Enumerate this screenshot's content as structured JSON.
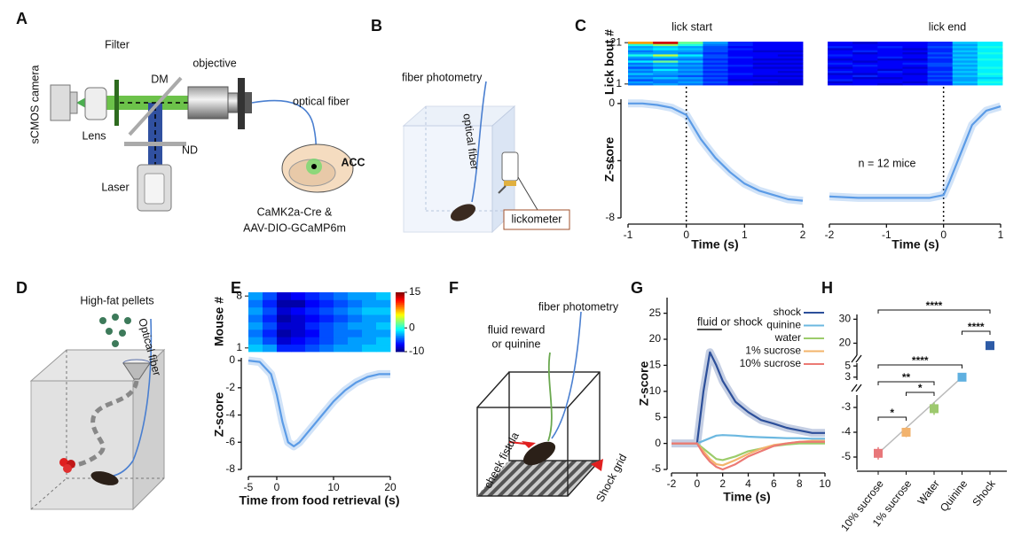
{
  "panel_labels": [
    "A",
    "B",
    "C",
    "D",
    "E",
    "F",
    "G",
    "H"
  ],
  "diagrams": {
    "A": {
      "labels": [
        "sCMOS camera",
        "Lens",
        "Filter",
        "DM",
        "objective",
        "optical fiber",
        "ND",
        "Laser",
        "ACC",
        "CaMK2a-Cre &",
        "AAV-DIO-GCaMP6m"
      ]
    },
    "B": {
      "labels": [
        "fiber photometry",
        "optical fiber",
        "lickometer"
      ]
    },
    "D": {
      "labels": [
        "High-fat pellets",
        "Optical fiber"
      ]
    },
    "F": {
      "labels": [
        "fiber photometry",
        "fluid reward",
        "or quinine",
        "cheek fistula",
        "Shock grid"
      ]
    }
  },
  "chart_data": [
    {
      "type": "line",
      "annotation": "lick start",
      "ylabel": "Z-score",
      "xlabel": "Time (s)",
      "color": "#5b9be6",
      "x": [
        -1,
        -0.75,
        -0.5,
        -0.25,
        0,
        0.25,
        0.5,
        0.75,
        1,
        1.25,
        1.5,
        1.75,
        2
      ],
      "values": [
        0,
        0,
        -0.1,
        -0.3,
        -0.8,
        -2.5,
        -3.8,
        -4.8,
        -5.6,
        -6.1,
        -6.4,
        -6.7,
        -6.8
      ],
      "xlim": [
        -1,
        2
      ],
      "xticks": [
        -1,
        0,
        1,
        2
      ],
      "ylim": [
        -8,
        0.3
      ],
      "yticks": [
        0,
        -4,
        -8
      ],
      "vline": 0,
      "heatmap": {
        "ylabel": "Lick bout #",
        "yticks": [
          21,
          1
        ],
        "clim": [
          -10,
          15
        ],
        "rows": [
          [
            -4,
            -3,
            -4,
            -6,
            -7,
            -8,
            -8
          ],
          [
            -3,
            -4,
            -3,
            -5,
            -7,
            -7,
            -8
          ],
          [
            -5,
            -4,
            -4,
            -6,
            -8,
            -8,
            -8
          ],
          [
            -3,
            -2,
            -3,
            -5,
            -7,
            -7,
            -7
          ],
          [
            -4,
            -4,
            -5,
            -6,
            -7,
            -8,
            -8
          ],
          [
            -2,
            -3,
            -3,
            -5,
            -6,
            -7,
            -7
          ],
          [
            -4,
            -3,
            -4,
            -6,
            -7,
            -7,
            -8
          ],
          [
            -3,
            -1,
            -3,
            -5,
            -7,
            -7,
            -7
          ],
          [
            -5,
            -4,
            -4,
            -6,
            -7,
            -8,
            -8
          ],
          [
            -3,
            -2,
            -3,
            -5,
            -6,
            -7,
            -7
          ],
          [
            -4,
            -3,
            -4,
            -6,
            -7,
            -8,
            -8
          ],
          [
            -1,
            2,
            -2,
            -5,
            -7,
            -7,
            -7
          ],
          [
            -4,
            -4,
            -4,
            -6,
            -7,
            -8,
            -8
          ],
          [
            -3,
            -2,
            -3,
            -5,
            -6,
            -7,
            -7
          ],
          [
            0,
            4,
            -1,
            -5,
            -7,
            -7,
            -8
          ],
          [
            -3,
            -3,
            -4,
            -6,
            -7,
            -7,
            -7
          ],
          [
            -4,
            -3,
            -3,
            -5,
            -7,
            -8,
            -8
          ],
          [
            -2,
            -1,
            -2,
            -5,
            -6,
            -7,
            -7
          ],
          [
            -3,
            -2,
            -3,
            -5,
            -7,
            -7,
            -7
          ],
          [
            0,
            3,
            0,
            -4,
            -6,
            -7,
            -7
          ],
          [
            8,
            13,
            2,
            -3,
            -6,
            -7,
            -7
          ]
        ]
      }
    },
    {
      "type": "line",
      "annotation": "lick end",
      "note": "n = 12 mice",
      "xlabel": "Time (s)",
      "color": "#5b9be6",
      "x": [
        -2,
        -1.5,
        -1,
        -0.5,
        -0.25,
        0,
        0.1,
        0.25,
        0.4,
        0.5,
        0.75,
        1
      ],
      "values": [
        -6.5,
        -6.6,
        -6.6,
        -6.6,
        -6.6,
        -6.4,
        -5.5,
        -4,
        -2.5,
        -1.5,
        -0.5,
        -0.2
      ],
      "xlim": [
        -2,
        1
      ],
      "xticks": [
        -2,
        -1,
        0,
        1
      ],
      "ylim": [
        -8,
        0.3
      ],
      "vline": 0,
      "heatmap": {
        "clim": [
          -10,
          15
        ],
        "rows": [
          [
            -7,
            -7,
            -8,
            -7,
            -6,
            -3,
            -1
          ],
          [
            -8,
            -7,
            -7,
            -8,
            -6,
            -2,
            0
          ],
          [
            -6,
            -7,
            -7,
            -7,
            -5,
            -3,
            -1
          ],
          [
            -7,
            -8,
            -8,
            -7,
            -6,
            -3,
            -2
          ],
          [
            -7,
            -6,
            -7,
            -7,
            -5,
            -2,
            -1
          ],
          [
            -8,
            -8,
            -7,
            -8,
            -6,
            -3,
            0
          ],
          [
            -6,
            -7,
            -6,
            -7,
            -5,
            -2,
            -1
          ],
          [
            -7,
            -7,
            -8,
            -7,
            -6,
            -3,
            -1
          ],
          [
            -8,
            -7,
            -7,
            -8,
            -6,
            -2,
            0
          ],
          [
            -7,
            -6,
            -7,
            -7,
            -5,
            -3,
            -1
          ],
          [
            -6,
            -7,
            -7,
            -6,
            -5,
            -2,
            -1
          ],
          [
            -7,
            -8,
            -7,
            -7,
            -6,
            -3,
            -1
          ],
          [
            -8,
            -7,
            -8,
            -8,
            -6,
            -2,
            0
          ],
          [
            -7,
            -7,
            -6,
            -7,
            -5,
            -3,
            -1
          ],
          [
            -6,
            -7,
            -7,
            -7,
            -6,
            -2,
            -1
          ],
          [
            -7,
            -8,
            -7,
            -8,
            -5,
            -3,
            0
          ],
          [
            -7,
            -6,
            -7,
            -7,
            -6,
            -2,
            -1
          ],
          [
            -8,
            -7,
            -7,
            -8,
            -6,
            -3,
            -1
          ],
          [
            -6,
            -7,
            -6,
            -7,
            -5,
            -2,
            0
          ],
          [
            -7,
            -7,
            -7,
            -7,
            -6,
            -3,
            -1
          ],
          [
            -7,
            -8,
            -7,
            -7,
            -6,
            -2,
            -1
          ]
        ]
      }
    },
    {
      "type": "line",
      "ylabel": "Z-score",
      "xlabel": "Time from food retrieval (s)",
      "color": "#5b9be6",
      "x": [
        -5,
        -3,
        -1,
        0,
        1,
        2,
        3,
        4,
        6,
        8,
        10,
        12,
        14,
        16,
        18,
        20
      ],
      "values": [
        0,
        -0.1,
        -1,
        -2.5,
        -4.5,
        -6,
        -6.3,
        -6,
        -5,
        -4,
        -3,
        -2.2,
        -1.6,
        -1.2,
        -1,
        -1
      ],
      "xlim": [
        -5,
        20
      ],
      "xticks": [
        -5,
        0,
        10,
        20
      ],
      "ylim": [
        -8,
        0.2
      ],
      "yticks": [
        0,
        -2,
        -4,
        -6,
        -8
      ],
      "heatmap": {
        "ylabel": "Mouse #",
        "yticks": [
          8,
          1
        ],
        "clim": [
          -10,
          15
        ],
        "colorbar_ticks": [
          15,
          0,
          -10
        ],
        "rows": [
          [
            -2,
            -3,
            -6,
            -6,
            -5,
            -4,
            -3,
            -3,
            -2,
            -2
          ],
          [
            -3,
            -5,
            -8,
            -7,
            -6,
            -5,
            -4,
            -3,
            -3,
            -2
          ],
          [
            -4,
            -6,
            -9,
            -8,
            -7,
            -5,
            -4,
            -4,
            -3,
            -3
          ],
          [
            -3,
            -5,
            -8,
            -8,
            -6,
            -5,
            -4,
            -3,
            -3,
            -2
          ],
          [
            -4,
            -6,
            -9,
            -8,
            -7,
            -6,
            -5,
            -4,
            -3,
            -3
          ],
          [
            -3,
            -5,
            -8,
            -7,
            -6,
            -5,
            -4,
            -3,
            -2,
            -2
          ],
          [
            -4,
            -6,
            -9,
            -9,
            -7,
            -6,
            -5,
            -4,
            -3,
            -3
          ],
          [
            -3,
            -5,
            -8,
            -7,
            -6,
            -5,
            -4,
            -3,
            -3,
            -2
          ]
        ]
      }
    },
    {
      "type": "line",
      "annotation": "fluid or shock",
      "ylabel": "Z-score",
      "xlabel": "Time (s)",
      "x": [
        -2,
        -1,
        0,
        0.5,
        1,
        1.5,
        2,
        3,
        4,
        5,
        6,
        7,
        8,
        9,
        10
      ],
      "series": [
        {
          "name": "shock",
          "color": "#2c4f9a",
          "values": [
            0,
            0,
            0,
            10,
            17.5,
            15,
            12,
            8,
            6,
            4.5,
            3.8,
            3,
            2.5,
            2,
            2
          ]
        },
        {
          "name": "quinine",
          "color": "#6cb8e0",
          "values": [
            0,
            0,
            0,
            0.5,
            1,
            1.5,
            1.6,
            1.5,
            1.3,
            1.2,
            1.1,
            1,
            1,
            0.9,
            0.9
          ]
        },
        {
          "name": "water",
          "color": "#9ccc6b",
          "values": [
            0,
            0,
            0,
            -1,
            -2,
            -3,
            -3.2,
            -2.5,
            -1.5,
            -1,
            -0.5,
            -0.2,
            0,
            0,
            0
          ]
        },
        {
          "name": "1% sucrose",
          "color": "#f3b46b",
          "values": [
            0,
            0,
            0,
            -1.5,
            -3,
            -4,
            -4.2,
            -3.2,
            -2,
            -1,
            -0.3,
            0,
            0.3,
            0.5,
            0.5
          ]
        },
        {
          "name": "10% sucrose",
          "color": "#ec7a74",
          "values": [
            0,
            0,
            0,
            -2,
            -3.5,
            -4.5,
            -5,
            -4,
            -2.5,
            -1.5,
            -0.5,
            0,
            0.3,
            0.3,
            0.3
          ]
        }
      ],
      "xlim": [
        -2,
        10
      ],
      "xticks": [
        -2,
        0,
        2,
        4,
        6,
        8,
        10
      ],
      "ylim": [
        -5,
        28
      ],
      "yticks": [
        -5,
        0,
        5,
        10,
        15,
        20,
        25
      ]
    },
    {
      "type": "scatter",
      "categories": [
        "10% sucrose",
        "1% sucrose",
        "Water",
        "Quinine",
        "Shock"
      ],
      "values": [
        -4.85,
        -4.0,
        -3.05,
        3,
        19
      ],
      "error": [
        0.25,
        0.2,
        0.25,
        0.15,
        1.5
      ],
      "colors": [
        "#e8777a",
        "#f2b36e",
        "#9dc96e",
        "#5fb0e0",
        "#2d5ba6"
      ],
      "y_segments": [
        {
          "ylim": [
            -5.5,
            -2.5
          ],
          "yticks": [
            -5,
            -4,
            -3
          ]
        },
        {
          "ylim": [
            2.5,
            5.5
          ],
          "yticks": [
            3,
            5
          ]
        },
        {
          "ylim": [
            15,
            32
          ],
          "yticks": [
            20,
            30
          ]
        }
      ],
      "significance": [
        "****",
        "****",
        "****",
        "**",
        "*",
        "*"
      ]
    }
  ]
}
